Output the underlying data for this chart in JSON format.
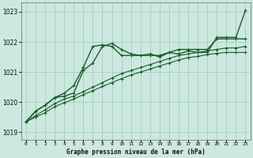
{
  "background_color": "#cce8e0",
  "grid_color": "#99ccbb",
  "line_color": "#1a5c2a",
  "title": "Graphe pression niveau de la mer (hPa)",
  "xlim": [
    -0.5,
    23.5
  ],
  "ylim": [
    1018.75,
    1023.3
  ],
  "yticks": [
    1019,
    1020,
    1021,
    1022,
    1023
  ],
  "xticks": [
    0,
    1,
    2,
    3,
    4,
    5,
    6,
    7,
    8,
    9,
    10,
    11,
    12,
    13,
    14,
    15,
    16,
    17,
    18,
    19,
    20,
    21,
    22,
    23
  ],
  "series": [
    {
      "x": [
        0,
        1,
        2,
        3,
        4,
        5,
        6,
        7,
        8,
        9,
        10,
        11,
        12,
        13,
        14,
        15,
        16,
        17,
        18,
        19,
        20,
        21,
        22,
        23
      ],
      "y": [
        1019.35,
        1019.7,
        1019.9,
        1020.15,
        1020.2,
        1020.3,
        1021.05,
        1021.3,
        1021.85,
        1021.95,
        1021.75,
        1021.6,
        1021.55,
        1021.6,
        1021.5,
        1021.65,
        1021.6,
        1021.7,
        1021.65,
        1021.65,
        1022.15,
        1022.15,
        1022.15,
        1023.05
      ],
      "marker": "+",
      "markersize": 3.5,
      "linewidth": 1.0
    },
    {
      "x": [
        0,
        1,
        2,
        3,
        4,
        5,
        6,
        7,
        8,
        9,
        10,
        11,
        12,
        13,
        14,
        15,
        16,
        17,
        18,
        19,
        20,
        21,
        22,
        23
      ],
      "y": [
        1019.35,
        1019.7,
        1019.9,
        1020.15,
        1020.3,
        1020.55,
        1021.15,
        1021.85,
        1021.9,
        1021.85,
        1021.55,
        1021.55,
        1021.55,
        1021.55,
        1021.55,
        1021.65,
        1021.75,
        1021.75,
        1021.75,
        1021.75,
        1022.1,
        1022.1,
        1022.1,
        1022.1
      ],
      "marker": "+",
      "markersize": 3.5,
      "linewidth": 1.0
    },
    {
      "x": [
        0,
        1,
        2,
        3,
        4,
        5,
        6,
        7,
        8,
        9,
        10,
        11,
        12,
        13,
        14,
        15,
        16,
        17,
        18,
        19,
        20,
        21,
        22,
        23
      ],
      "y": [
        1019.35,
        1019.55,
        1019.75,
        1019.95,
        1020.1,
        1020.2,
        1020.35,
        1020.5,
        1020.65,
        1020.8,
        1020.95,
        1021.05,
        1021.15,
        1021.25,
        1021.35,
        1021.45,
        1021.55,
        1021.6,
        1021.65,
        1021.7,
        1021.75,
        1021.8,
        1021.8,
        1021.85
      ],
      "marker": "+",
      "markersize": 3.0,
      "linewidth": 0.8
    },
    {
      "x": [
        0,
        1,
        2,
        3,
        4,
        5,
        6,
        7,
        8,
        9,
        10,
        11,
        12,
        13,
        14,
        15,
        16,
        17,
        18,
        19,
        20,
        21,
        22,
        23
      ],
      "y": [
        1019.35,
        1019.5,
        1019.65,
        1019.85,
        1019.98,
        1020.1,
        1020.25,
        1020.38,
        1020.52,
        1020.65,
        1020.78,
        1020.9,
        1021.0,
        1021.1,
        1021.2,
        1021.3,
        1021.4,
        1021.48,
        1021.52,
        1021.58,
        1021.62,
        1021.65,
        1021.65,
        1021.65
      ],
      "marker": "+",
      "markersize": 3.0,
      "linewidth": 0.8
    }
  ]
}
